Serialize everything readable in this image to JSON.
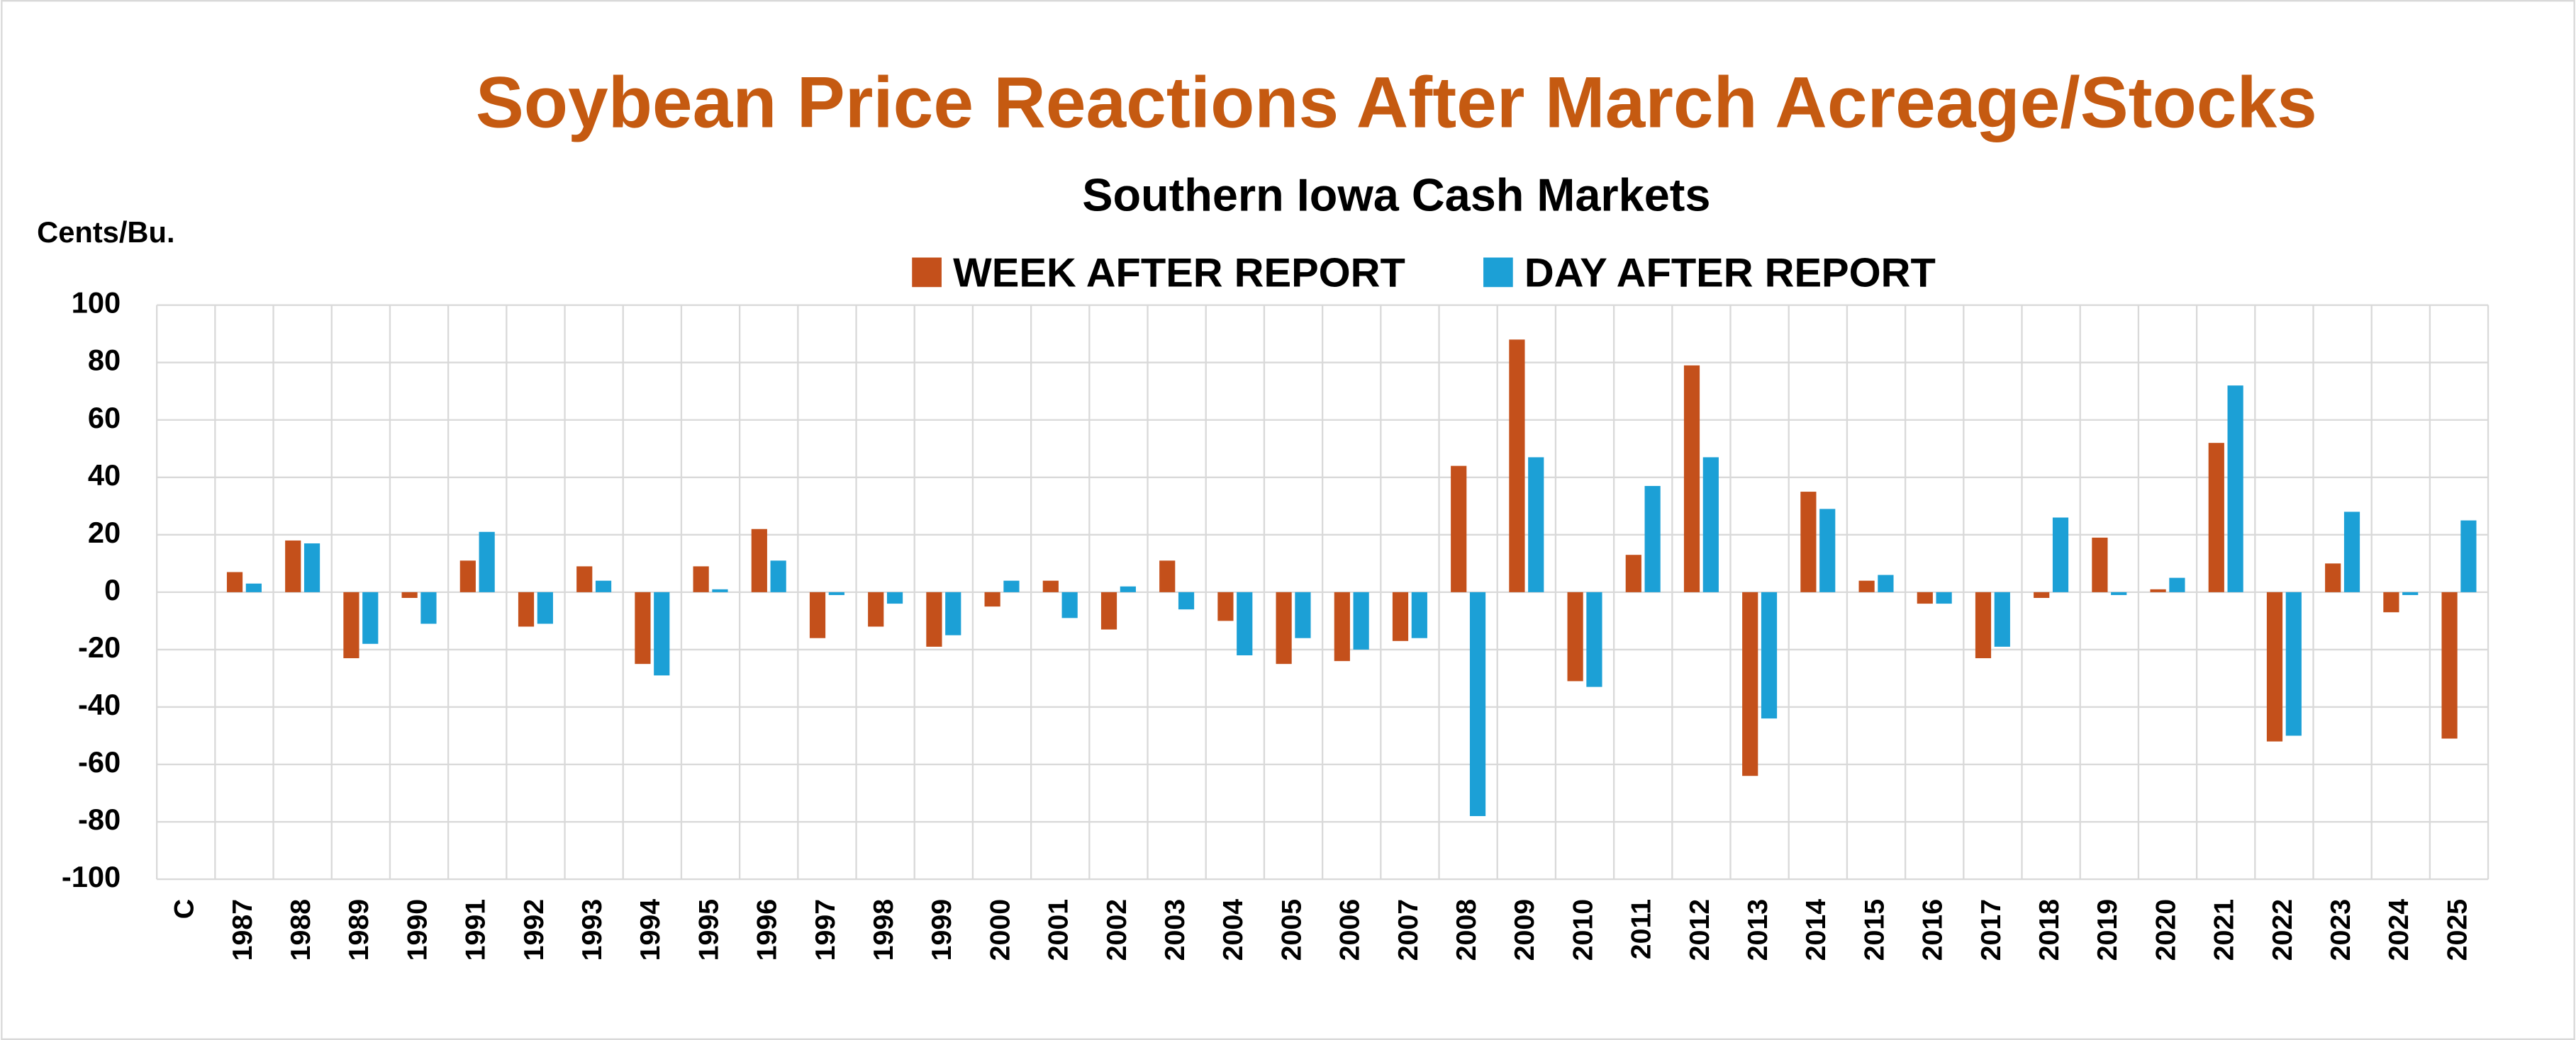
{
  "chart_data": {
    "type": "bar",
    "title": "Soybean Price Reactions After March Acreage/Stocks",
    "subtitle": "Southern Iowa Cash Markets",
    "y_label": "Cents/Bu.",
    "categories": [
      "C",
      "1987",
      "1988",
      "1989",
      "1990",
      "1991",
      "1992",
      "1993",
      "1994",
      "1995",
      "1996",
      "1997",
      "1998",
      "1999",
      "2000",
      "2001",
      "2002",
      "2003",
      "2004",
      "2005",
      "2006",
      "2007",
      "2008",
      "2009",
      "2010",
      "2011",
      "2012",
      "2013",
      "2014",
      "2015",
      "2016",
      "2017",
      "2018",
      "2019",
      "2020",
      "2021",
      "2022",
      "2023",
      "2024",
      "2025"
    ],
    "series": [
      {
        "name": "WEEK AFTER REPORT",
        "color": "#c4501b",
        "values": [
          null,
          7,
          18,
          -23,
          -2,
          11,
          -12,
          9,
          -25,
          9,
          22,
          -16,
          -12,
          -19,
          -5,
          4,
          -13,
          11,
          -10,
          -25,
          -24,
          -17,
          44,
          88,
          -31,
          13,
          79,
          -64,
          35,
          4,
          -4,
          -23,
          -2,
          19,
          1,
          52,
          -52,
          10,
          -7,
          -51
        ]
      },
      {
        "name": "DAY AFTER REPORT",
        "color": "#1ca0d6",
        "values": [
          null,
          3,
          17,
          -18,
          -11,
          21,
          -11,
          4,
          -29,
          1,
          11,
          -1,
          -4,
          -15,
          4,
          -9,
          2,
          -6,
          -22,
          -16,
          -20,
          -16,
          -78,
          47,
          -33,
          37,
          47,
          -44,
          29,
          6,
          -4,
          -19,
          26,
          -1,
          5,
          72,
          -50,
          28,
          -1,
          25
        ]
      }
    ],
    "ylim": [
      -100,
      100
    ],
    "yticks": [
      -100,
      -80,
      -60,
      -40,
      -20,
      0,
      20,
      40,
      60,
      80,
      100
    ],
    "grid": true,
    "legend": "top"
  }
}
